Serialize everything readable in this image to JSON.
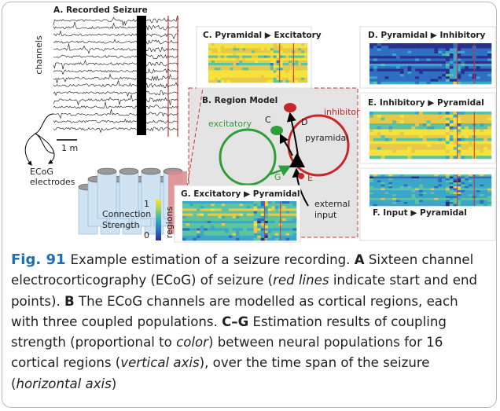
{
  "panel_a": {
    "title": "A. Recorded Seizure",
    "axis_label": "channels",
    "scale_bar": "1 m",
    "electrodes_label": [
      "ECoG",
      "electrodes"
    ]
  },
  "panel_b": {
    "title": "B. Region Model",
    "excitatory": "excitatory",
    "inhibitory": "inhibitory",
    "pyramidal": "pyramidal",
    "external_input": [
      "external",
      "input"
    ],
    "edges": {
      "c": "C",
      "d": "D",
      "e": "E",
      "f": "F",
      "g": "G"
    }
  },
  "heatmaps": [
    {
      "title": "C. Pyramidal ▶ Excitatory"
    },
    {
      "title": "D. Pyramidal ▶ Inhibitory"
    },
    {
      "title": "E. Inhibitory ▶ Pyramidal"
    },
    {
      "title": "F. Input ▶ Pyramidal"
    },
    {
      "title": "G. Excitatory ▶ Pyramidal",
      "axis_label": "regions"
    }
  ],
  "colorbar": {
    "title": [
      "Connection",
      "Strength"
    ],
    "ticks": [
      1,
      0
    ]
  },
  "caption": {
    "label": "Fig. 91",
    "parts": [
      "Example estimation of a seizure recording. ",
      "A",
      " Sixteen channel electrocorticography (ECoG) of seizure (",
      "red lines",
      " indicate start and end points). ",
      "B",
      " The ECoG channels are modelled as cortical regions, each with three coupled populations. ",
      "C–G",
      " Estimation results of coupling strength (proportional to ",
      "color",
      ") between neural populations for 16 cortical regions (",
      "vertical axis",
      "), over the time span of the seizure (",
      "horizontal axis",
      ")"
    ]
  }
}
